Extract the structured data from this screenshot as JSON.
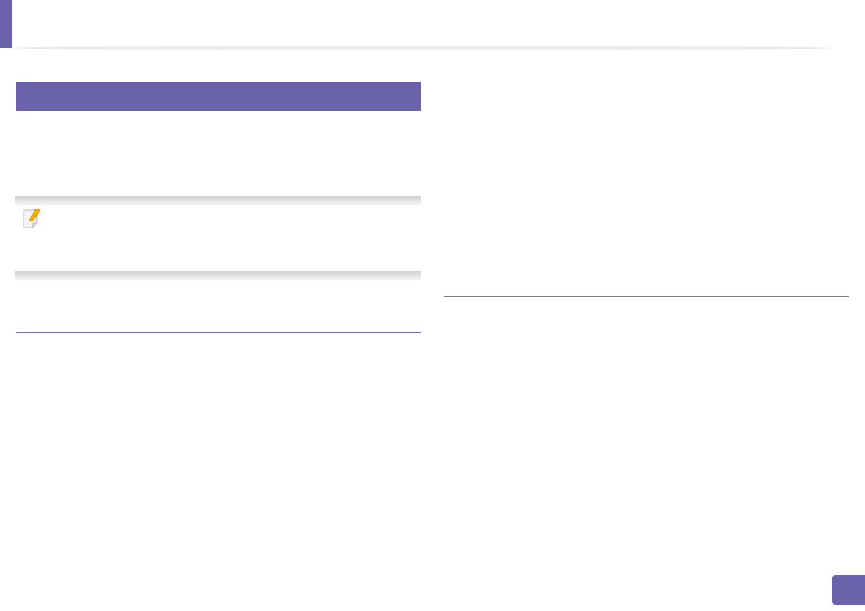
{
  "colors": {
    "accent": "#6a63ab",
    "rule": "#7a6fbf"
  },
  "icons": {
    "note": "note-pencil-icon"
  }
}
